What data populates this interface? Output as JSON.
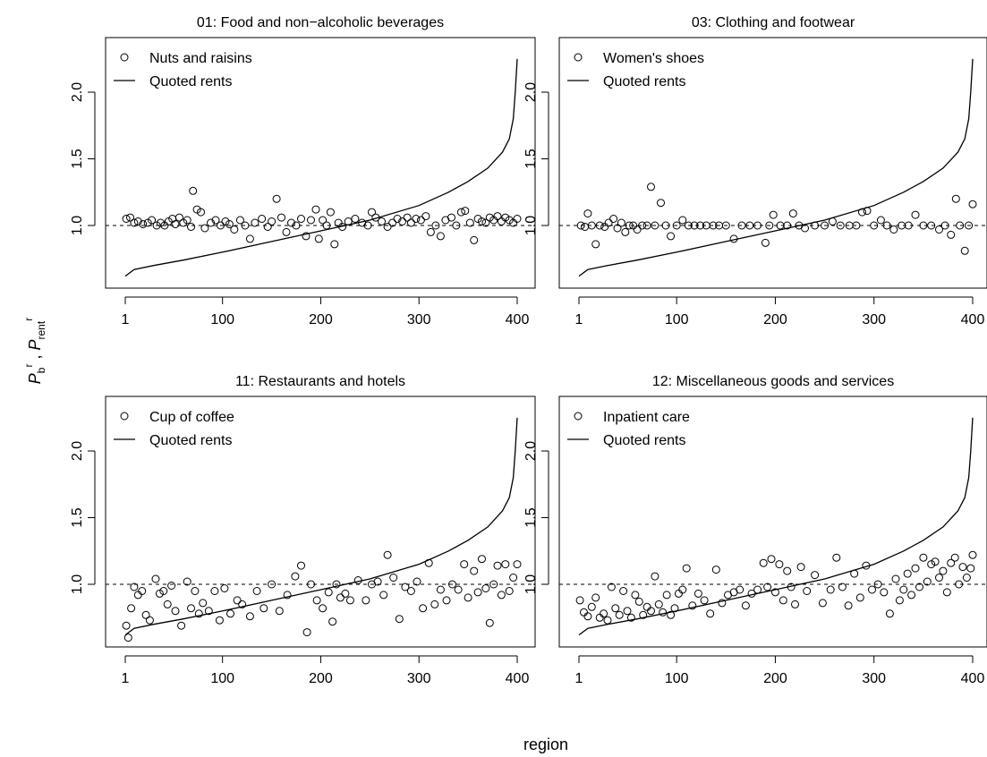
{
  "figure": {
    "xlabel": "region",
    "ylabel_parts": {
      "p1": "P",
      "p1_sup": "r",
      "p1_sub": "b",
      "sep": " , ",
      "p2": "P",
      "p2_sup": "r",
      "p2_sub": "rent"
    }
  },
  "chart_data": [
    {
      "type": "scatter",
      "title": "01: Food and non−alcoholic beverages",
      "xlabel": "region",
      "ylabel": "",
      "xlim": [
        1,
        400
      ],
      "ylim": [
        0.6,
        2.25
      ],
      "xticks": [
        1,
        100,
        200,
        300,
        400
      ],
      "yticks": [
        1.0,
        1.5,
        2.0
      ],
      "legend": {
        "position": "top-left",
        "entries": [
          "Nuts and raisins",
          "Quoted rents"
        ]
      },
      "reference_line": 1.0,
      "series": [
        {
          "name": "Nuts and raisins",
          "kind": "points",
          "x": [
            2,
            6,
            10,
            14,
            19,
            24,
            28,
            33,
            37,
            41,
            45,
            49,
            52,
            56,
            60,
            64,
            68,
            70,
            74,
            78,
            82,
            88,
            93,
            98,
            103,
            107,
            112,
            118,
            123,
            128,
            133,
            140,
            146,
            150,
            155,
            160,
            165,
            170,
            175,
            180,
            185,
            190,
            195,
            198,
            202,
            206,
            210,
            214,
            218,
            222,
            228,
            235,
            242,
            248,
            252,
            256,
            262,
            268,
            273,
            278,
            283,
            288,
            292,
            297,
            302,
            307,
            312,
            317,
            322,
            327,
            333,
            338,
            343,
            347,
            352,
            356,
            360,
            364,
            368,
            372,
            376,
            380,
            384,
            388,
            392,
            396,
            400
          ],
          "y": [
            1.05,
            1.06,
            1.02,
            1.03,
            1.01,
            1.02,
            1.04,
            1.0,
            1.02,
            1.0,
            1.03,
            1.05,
            1.01,
            1.06,
            1.02,
            1.04,
            0.99,
            1.26,
            1.12,
            1.1,
            0.98,
            1.02,
            1.04,
            1.0,
            1.03,
            1.01,
            0.97,
            1.04,
            1.0,
            0.9,
            1.02,
            1.05,
            0.99,
            1.03,
            1.2,
            1.06,
            0.95,
            1.02,
            1.0,
            1.05,
            0.92,
            1.04,
            1.12,
            0.9,
            1.04,
            1.0,
            1.1,
            0.86,
            1.02,
            0.99,
            1.03,
            1.05,
            1.02,
            1.0,
            1.1,
            1.06,
            1.03,
            0.99,
            1.02,
            1.05,
            1.03,
            1.06,
            1.02,
            1.05,
            1.04,
            1.07,
            0.95,
            1.0,
            0.92,
            1.04,
            1.06,
            1.0,
            1.1,
            1.11,
            1.02,
            0.89,
            1.05,
            1.03,
            1.02,
            1.06,
            1.04,
            1.07,
            1.03,
            1.06,
            1.04,
            1.02,
            1.05
          ]
        },
        {
          "name": "Quoted rents",
          "kind": "line",
          "x": [
            1,
            10,
            30,
            60,
            100,
            150,
            200,
            250,
            300,
            330,
            350,
            370,
            385,
            392,
            396,
            398,
            400
          ],
          "y": [
            0.62,
            0.67,
            0.7,
            0.74,
            0.8,
            0.88,
            0.96,
            1.04,
            1.15,
            1.25,
            1.33,
            1.43,
            1.55,
            1.65,
            1.8,
            2.0,
            2.25
          ]
        }
      ]
    },
    {
      "type": "scatter",
      "title": "03: Clothing and footwear",
      "xlabel": "region",
      "ylabel": "",
      "xlim": [
        1,
        400
      ],
      "ylim": [
        0.6,
        2.25
      ],
      "xticks": [
        1,
        100,
        200,
        300,
        400
      ],
      "yticks": [
        1.0,
        1.5,
        2.0
      ],
      "legend": {
        "position": "top-left",
        "entries": [
          "Women's shoes",
          "Quoted rents"
        ]
      },
      "reference_line": 1.0,
      "series": [
        {
          "name": "Women's shoes",
          "kind": "points",
          "x": [
            3,
            7,
            10,
            14,
            18,
            22,
            27,
            31,
            36,
            40,
            44,
            48,
            52,
            56,
            60,
            65,
            70,
            74,
            78,
            84,
            89,
            94,
            100,
            106,
            112,
            118,
            124,
            130,
            137,
            143,
            150,
            158,
            166,
            174,
            182,
            190,
            194,
            198,
            205,
            212,
            218,
            224,
            230,
            240,
            250,
            258,
            266,
            275,
            282,
            288,
            293,
            300,
            307,
            313,
            320,
            328,
            335,
            342,
            350,
            358,
            366,
            372,
            378,
            383,
            387,
            392,
            396,
            400
          ],
          "y": [
            1.0,
            0.99,
            1.09,
            1.0,
            0.86,
            1.0,
            0.99,
            1.02,
            1.05,
            0.98,
            1.02,
            0.95,
            1.0,
            1.0,
            0.97,
            1.0,
            1.0,
            1.29,
            1.0,
            1.17,
            1.0,
            0.92,
            1.0,
            1.04,
            1.0,
            1.0,
            1.0,
            1.0,
            1.0,
            1.0,
            1.0,
            0.9,
            1.0,
            1.0,
            1.0,
            0.87,
            1.0,
            1.08,
            1.0,
            1.0,
            1.09,
            1.0,
            0.98,
            1.0,
            1.0,
            1.03,
            1.0,
            1.0,
            1.0,
            1.1,
            1.11,
            1.0,
            1.04,
            1.0,
            0.97,
            1.0,
            1.0,
            1.08,
            1.0,
            1.0,
            0.97,
            1.0,
            0.93,
            1.2,
            1.0,
            0.81,
            1.0,
            1.16
          ]
        },
        {
          "name": "Quoted rents",
          "kind": "line",
          "x": [
            1,
            10,
            30,
            60,
            100,
            150,
            200,
            250,
            300,
            330,
            350,
            370,
            385,
            392,
            396,
            398,
            400
          ],
          "y": [
            0.62,
            0.67,
            0.7,
            0.74,
            0.8,
            0.88,
            0.96,
            1.04,
            1.15,
            1.25,
            1.33,
            1.43,
            1.55,
            1.65,
            1.8,
            2.0,
            2.25
          ]
        }
      ]
    },
    {
      "type": "scatter",
      "title": "11: Restaurants and hotels",
      "xlabel": "region",
      "ylabel": "",
      "xlim": [
        1,
        400
      ],
      "ylim": [
        0.58,
        2.25
      ],
      "xticks": [
        1,
        100,
        200,
        300,
        400
      ],
      "yticks": [
        1.0,
        1.5,
        2.0
      ],
      "legend": {
        "position": "top-left",
        "entries": [
          "Cup of coffee",
          "Quoted rents"
        ]
      },
      "reference_line": 1.0,
      "series": [
        {
          "name": "Cup of coffee",
          "kind": "points",
          "x": [
            2,
            4,
            7,
            10,
            14,
            18,
            22,
            26,
            32,
            36,
            40,
            44,
            48,
            52,
            58,
            64,
            68,
            72,
            76,
            80,
            86,
            92,
            97,
            102,
            108,
            115,
            120,
            128,
            135,
            142,
            150,
            158,
            166,
            174,
            180,
            186,
            190,
            196,
            202,
            208,
            212,
            216,
            220,
            225,
            230,
            238,
            246,
            252,
            258,
            264,
            268,
            274,
            280,
            286,
            292,
            298,
            304,
            310,
            316,
            322,
            328,
            334,
            340,
            346,
            350,
            356,
            360,
            364,
            368,
            372,
            376,
            380,
            384,
            388,
            392,
            396,
            400
          ],
          "y": [
            0.69,
            0.6,
            0.82,
            0.98,
            0.92,
            0.95,
            0.77,
            0.73,
            1.04,
            0.93,
            0.95,
            0.85,
            0.99,
            0.8,
            0.69,
            1.02,
            0.82,
            0.95,
            0.78,
            0.86,
            0.8,
            0.95,
            0.73,
            0.97,
            0.78,
            0.88,
            0.85,
            0.76,
            0.95,
            0.82,
            1.0,
            0.8,
            0.92,
            1.06,
            1.14,
            0.64,
            1.0,
            0.88,
            0.82,
            0.94,
            0.72,
            1.0,
            0.9,
            0.93,
            0.88,
            1.03,
            0.88,
            1.0,
            1.02,
            0.92,
            1.22,
            1.05,
            0.74,
            0.98,
            0.95,
            1.02,
            0.82,
            1.16,
            0.85,
            0.96,
            0.88,
            1.0,
            0.96,
            1.15,
            0.9,
            1.1,
            0.94,
            1.19,
            0.97,
            0.71,
            1.0,
            1.14,
            0.92,
            1.15,
            0.95,
            1.05,
            1.15
          ]
        },
        {
          "name": "Quoted rents",
          "kind": "line",
          "x": [
            1,
            10,
            30,
            60,
            100,
            150,
            200,
            250,
            300,
            330,
            350,
            370,
            385,
            392,
            396,
            398,
            400
          ],
          "y": [
            0.62,
            0.67,
            0.7,
            0.74,
            0.8,
            0.88,
            0.96,
            1.04,
            1.15,
            1.25,
            1.33,
            1.43,
            1.55,
            1.65,
            1.8,
            2.0,
            2.25
          ]
        }
      ]
    },
    {
      "type": "scatter",
      "title": "12: Miscellaneous goods and services",
      "xlabel": "region",
      "ylabel": "",
      "xlim": [
        1,
        400
      ],
      "ylim": [
        0.6,
        2.25
      ],
      "xticks": [
        1,
        100,
        200,
        300,
        400
      ],
      "yticks": [
        1.0,
        1.5,
        2.0
      ],
      "legend": {
        "position": "top-left",
        "entries": [
          "Inpatient care",
          "Quoted rents"
        ]
      },
      "reference_line": 1.0,
      "series": [
        {
          "name": "Inpatient care",
          "kind": "points",
          "x": [
            2,
            6,
            10,
            14,
            18,
            22,
            26,
            30,
            34,
            38,
            42,
            46,
            50,
            54,
            58,
            62,
            66,
            70,
            74,
            78,
            82,
            86,
            90,
            94,
            98,
            102,
            106,
            110,
            116,
            122,
            128,
            134,
            140,
            146,
            152,
            158,
            164,
            170,
            176,
            182,
            188,
            192,
            196,
            200,
            204,
            208,
            212,
            216,
            220,
            226,
            232,
            240,
            248,
            256,
            262,
            268,
            274,
            280,
            286,
            292,
            298,
            304,
            310,
            316,
            322,
            326,
            330,
            334,
            338,
            342,
            346,
            350,
            354,
            358,
            362,
            366,
            370,
            374,
            378,
            382,
            386,
            390,
            394,
            398,
            400
          ],
          "y": [
            0.88,
            0.79,
            0.76,
            0.83,
            0.9,
            0.75,
            0.78,
            0.73,
            0.98,
            0.82,
            0.77,
            0.95,
            0.8,
            0.75,
            0.92,
            0.87,
            0.77,
            0.83,
            0.8,
            1.06,
            0.85,
            0.79,
            0.92,
            0.77,
            0.82,
            0.93,
            0.96,
            1.12,
            0.84,
            0.93,
            0.88,
            0.78,
            1.11,
            0.86,
            0.92,
            0.94,
            0.96,
            0.84,
            0.93,
            0.96,
            1.16,
            0.98,
            1.19,
            0.94,
            1.15,
            0.88,
            1.1,
            0.98,
            0.85,
            1.13,
            0.95,
            1.07,
            0.86,
            0.96,
            1.2,
            0.98,
            0.84,
            1.08,
            0.9,
            1.14,
            0.96,
            1.0,
            0.94,
            0.78,
            1.04,
            0.88,
            0.96,
            1.08,
            0.92,
            1.12,
            0.98,
            1.2,
            1.02,
            1.15,
            1.17,
            1.05,
            1.1,
            0.94,
            1.16,
            1.2,
            1.0,
            1.13,
            1.05,
            1.12,
            1.22
          ]
        },
        {
          "name": "Quoted rents",
          "kind": "line",
          "x": [
            1,
            10,
            30,
            60,
            100,
            150,
            200,
            250,
            300,
            330,
            350,
            370,
            385,
            392,
            396,
            398,
            400
          ],
          "y": [
            0.62,
            0.67,
            0.7,
            0.74,
            0.8,
            0.88,
            0.96,
            1.04,
            1.15,
            1.25,
            1.33,
            1.43,
            1.55,
            1.65,
            1.8,
            2.0,
            2.25
          ]
        }
      ]
    }
  ]
}
